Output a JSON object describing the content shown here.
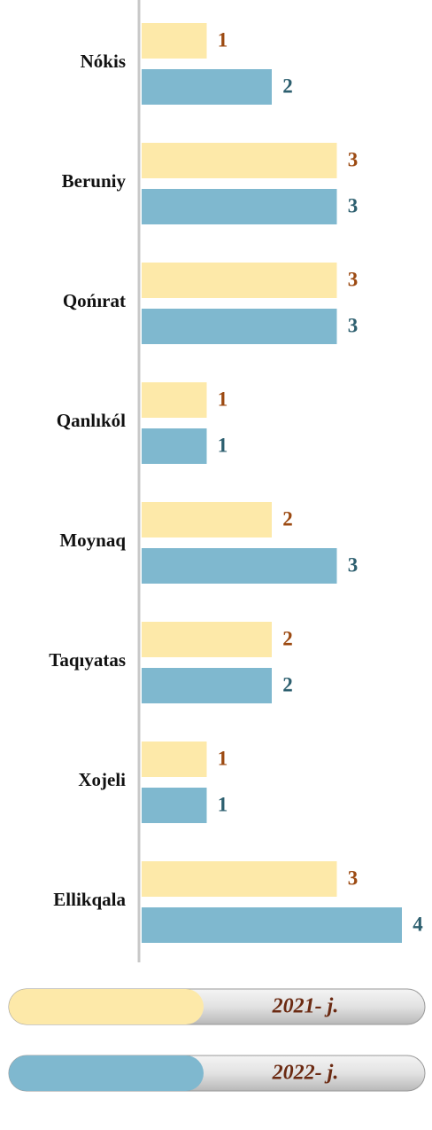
{
  "chart_data": {
    "type": "bar",
    "orientation": "horizontal",
    "categories": [
      "Nókis",
      "Beruniy",
      "Qońırat",
      "Qanlıkól",
      "Moynaq",
      "Taqıyatas",
      "Xojeli",
      "Ellikqala"
    ],
    "series": [
      {
        "name": "2021- j.",
        "color": "#fde9a9",
        "label_color": "#9c4a12",
        "values": [
          1,
          3,
          3,
          1,
          2,
          2,
          1,
          3
        ]
      },
      {
        "name": "2022- j.",
        "color": "#7fb8cf",
        "label_color": "#2d5f6f",
        "values": [
          2,
          3,
          3,
          1,
          3,
          2,
          1,
          4
        ]
      }
    ],
    "xlim": [
      0,
      4
    ]
  }
}
